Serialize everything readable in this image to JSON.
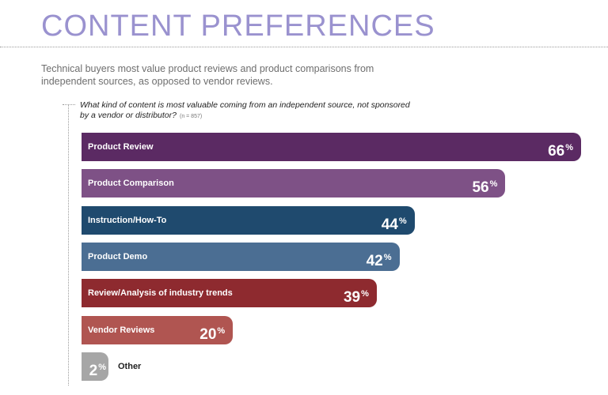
{
  "header": {
    "title": "CONTENT PREFERENCES",
    "subtitle": "Technical buyers most value product reviews and product comparisons from independent sources, as opposed to vendor reviews."
  },
  "chart_data": {
    "type": "bar",
    "orientation": "horizontal",
    "title": "What kind of content is most valuable coming from an independent source, not sponsored by a vendor or distributor?",
    "sample_note": "(n = 857)",
    "unit": "%",
    "categories": [
      "Product Review",
      "Product Comparison",
      "Instruction/How-To",
      "Product Demo",
      "Review/Analysis of industry trends",
      "Vendor Reviews",
      "Other"
    ],
    "values": [
      66,
      56,
      44,
      42,
      39,
      20,
      2
    ],
    "colors": [
      "#5b2a63",
      "#7e5186",
      "#1f4a6e",
      "#4b6e93",
      "#8e2a2f",
      "#b05551",
      "#a6a6a6"
    ],
    "xlim": [
      0,
      66
    ]
  }
}
